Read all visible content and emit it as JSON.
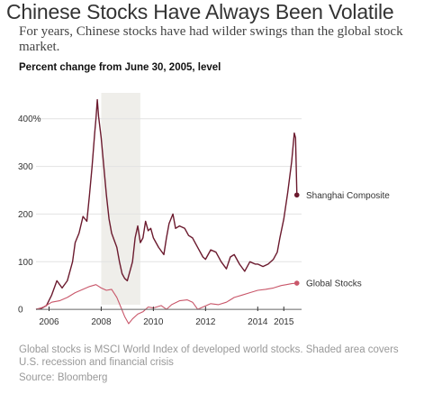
{
  "header": {
    "title": "Chinese Stocks Have Always Been Volatile",
    "subtitle": "For years, Chinese stocks have had wilder swings than the global stock market.",
    "chart_label": "Percent change from June 30, 2005, level"
  },
  "footer": {
    "notes": "Global stocks is MSCI World Index of developed world stocks. Shaded area covers U.S. recession and financial crisis",
    "source": "Source: Bloomberg"
  },
  "colors": {
    "shanghai": "#6b1a2e",
    "global": "#c9576a",
    "shade": "#efeeea",
    "zero_line": "#666666"
  },
  "chart_data": {
    "type": "line",
    "xlim": [
      2005.5,
      2015.75
    ],
    "ylim": [
      -30,
      460
    ],
    "y_ticks": [
      {
        "value": 0,
        "label": "0"
      },
      {
        "value": 100,
        "label": "100"
      },
      {
        "value": 200,
        "label": "200"
      },
      {
        "value": 300,
        "label": "300"
      },
      {
        "value": 400,
        "label": "400%"
      }
    ],
    "x_ticks": [
      {
        "value": 2006,
        "label": "2006"
      },
      {
        "value": 2008,
        "label": "2008"
      },
      {
        "value": 2010,
        "label": "2010"
      },
      {
        "value": 2012,
        "label": "2012"
      },
      {
        "value": 2014,
        "label": "2014"
      },
      {
        "value": 2015,
        "label": "2015"
      }
    ],
    "shaded_region": [
      2008.0,
      2009.5
    ],
    "series": [
      {
        "name": "Shanghai Composite",
        "x": [
          2005.5,
          2005.7,
          2005.9,
          2006.1,
          2006.3,
          2006.5,
          2006.7,
          2006.9,
          2007.0,
          2007.15,
          2007.3,
          2007.45,
          2007.55,
          2007.65,
          2007.75,
          2007.8,
          2007.85,
          2007.9,
          2008.0,
          2008.1,
          2008.2,
          2008.3,
          2008.4,
          2008.5,
          2008.6,
          2008.7,
          2008.8,
          2008.9,
          2009.0,
          2009.1,
          2009.2,
          2009.3,
          2009.4,
          2009.5,
          2009.6,
          2009.7,
          2009.8,
          2009.9,
          2010.0,
          2010.2,
          2010.4,
          2010.5,
          2010.6,
          2010.75,
          2010.85,
          2011.0,
          2011.2,
          2011.35,
          2011.5,
          2011.7,
          2011.9,
          2012.0,
          2012.2,
          2012.4,
          2012.6,
          2012.8,
          2012.95,
          2013.1,
          2013.3,
          2013.5,
          2013.7,
          2013.9,
          2014.0,
          2014.2,
          2014.4,
          2014.6,
          2014.75,
          2014.85,
          2015.0,
          2015.15,
          2015.3,
          2015.4,
          2015.45,
          2015.5
        ],
        "values": [
          0,
          2,
          8,
          30,
          60,
          45,
          60,
          100,
          140,
          160,
          195,
          185,
          240,
          300,
          370,
          400,
          440,
          405,
          360,
          300,
          240,
          190,
          160,
          145,
          130,
          100,
          75,
          65,
          60,
          80,
          100,
          150,
          175,
          140,
          150,
          185,
          165,
          170,
          150,
          130,
          115,
          150,
          180,
          200,
          170,
          175,
          170,
          155,
          150,
          130,
          110,
          105,
          125,
          120,
          100,
          85,
          110,
          115,
          95,
          80,
          100,
          95,
          95,
          90,
          95,
          105,
          120,
          150,
          190,
          245,
          310,
          370,
          360,
          240
        ]
      },
      {
        "name": "Global Stocks",
        "x": [
          2005.5,
          2005.8,
          2006.1,
          2006.4,
          2006.7,
          2007.0,
          2007.3,
          2007.55,
          2007.8,
          2008.0,
          2008.2,
          2008.4,
          2008.6,
          2008.75,
          2008.9,
          2009.05,
          2009.2,
          2009.4,
          2009.6,
          2009.8,
          2010.0,
          2010.3,
          2010.5,
          2010.7,
          2011.0,
          2011.3,
          2011.5,
          2011.7,
          2011.9,
          2012.2,
          2012.5,
          2012.8,
          2013.1,
          2013.4,
          2013.7,
          2014.0,
          2014.3,
          2014.6,
          2014.9,
          2015.1,
          2015.3,
          2015.5
        ],
        "values": [
          0,
          5,
          15,
          18,
          25,
          35,
          42,
          48,
          52,
          45,
          40,
          42,
          25,
          5,
          -15,
          -30,
          -20,
          -10,
          -5,
          5,
          3,
          8,
          0,
          10,
          18,
          20,
          15,
          0,
          5,
          12,
          10,
          15,
          25,
          30,
          35,
          40,
          42,
          45,
          50,
          52,
          54,
          55
        ]
      }
    ]
  }
}
